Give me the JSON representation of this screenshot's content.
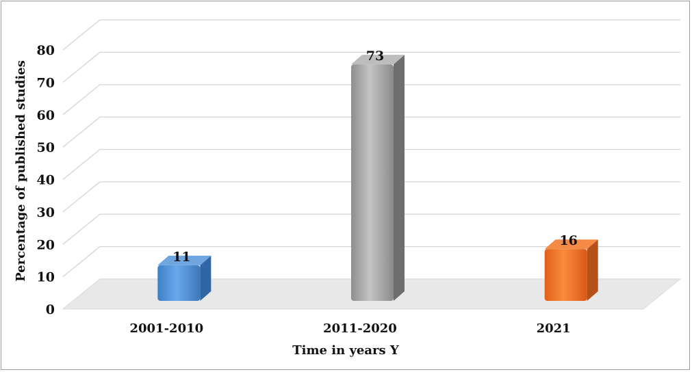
{
  "chart_data": {
    "type": "bar",
    "categories": [
      "2001-2010",
      "2011-2020",
      "2021"
    ],
    "values": [
      11,
      73,
      16
    ],
    "data_labels": [
      "11",
      "73",
      "16"
    ],
    "colors": [
      "#4d8fd6",
      "#a9a9a9",
      "#ee7024"
    ],
    "xlabel": "Time in years Y",
    "ylabel": "Percentage of published studies",
    "ylim": [
      0,
      80
    ],
    "yticks": [
      "0",
      "10",
      "20",
      "30",
      "40",
      "50",
      "60",
      "70",
      "80"
    ],
    "grid": true,
    "style": "3d-column",
    "legend": "none"
  }
}
